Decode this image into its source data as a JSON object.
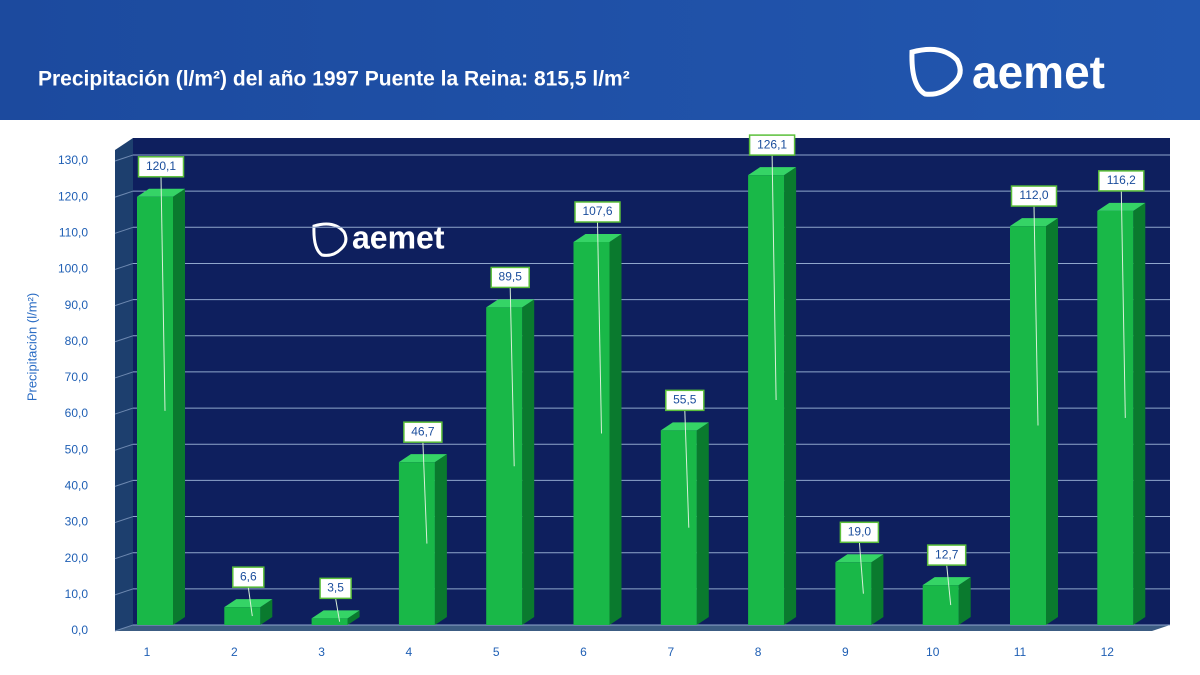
{
  "chart_data": {
    "type": "bar3d",
    "title": "Precipitación (l/m²) del año 1997 Puente la Reina: 815,5 l/m²",
    "logo": "aemet",
    "y_label": "Precipitación (l/m²)",
    "categories": [
      "1",
      "2",
      "3",
      "4",
      "5",
      "6",
      "7",
      "8",
      "9",
      "10",
      "11",
      "12"
    ],
    "values": [
      120.1,
      6.6,
      3.5,
      46.7,
      89.5,
      107.6,
      55.5,
      126.1,
      19.0,
      12.7,
      112.0,
      116.2
    ],
    "value_labels": [
      "120,1",
      "6,6",
      "3,5",
      "46,7",
      "89,5",
      "107,6",
      "55,5",
      "126,1",
      "19,0",
      "12,7",
      "112,0",
      "116,2"
    ],
    "color": "#19b848",
    "ylim": [
      0,
      130
    ],
    "yticks": [
      {
        "value": 0,
        "label": "0,0"
      },
      {
        "value": 10,
        "label": "10,0"
      },
      {
        "value": 20,
        "label": "20,0"
      },
      {
        "value": 30,
        "label": "30,0"
      },
      {
        "value": 40,
        "label": "40,0"
      },
      {
        "value": 50,
        "label": "50,0"
      },
      {
        "value": 60,
        "label": "60,0"
      },
      {
        "value": 70,
        "label": "70,0"
      },
      {
        "value": 80,
        "label": "80,0"
      },
      {
        "value": 90,
        "label": "90,0"
      },
      {
        "value": 100,
        "label": "100,0"
      },
      {
        "value": 110,
        "label": "110,0"
      },
      {
        "value": 120,
        "label": "120,0"
      },
      {
        "value": 130,
        "label": "130,0"
      }
    ],
    "grid": true
  }
}
